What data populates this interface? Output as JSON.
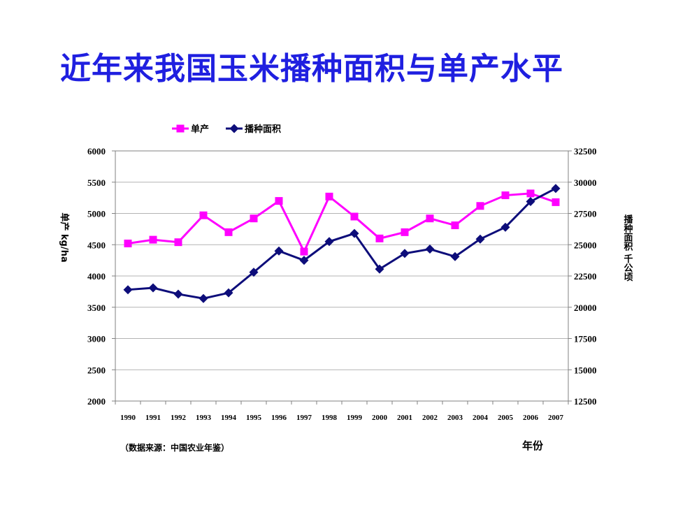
{
  "title": "近年来我国玉米播种面积与单产水平",
  "source_note": "（数据来源：中国农业年鉴）",
  "chart_data": {
    "type": "line",
    "xlabel": "年份",
    "ylabel_left": "单产 kg/ha",
    "ylabel_right": "播种面积  千公顷",
    "categories": [
      "1990",
      "1991",
      "1992",
      "1993",
      "1994",
      "1995",
      "1996",
      "1997",
      "1998",
      "1999",
      "2000",
      "2001",
      "2002",
      "2003",
      "2004",
      "2005",
      "2006",
      "2007"
    ],
    "ylim_left": [
      2000,
      6000
    ],
    "yticks_left": [
      2000,
      2500,
      3000,
      3500,
      4000,
      4500,
      5000,
      5500,
      6000
    ],
    "ylim_right": [
      12500,
      32500
    ],
    "yticks_right": [
      12500,
      15000,
      17500,
      20000,
      22500,
      25000,
      27500,
      30000,
      32500
    ],
    "grid": true,
    "legend_position": "top-center",
    "series": [
      {
        "name": "单产",
        "axis": "left",
        "color": "#ff00ff",
        "marker": "square",
        "values": [
          4520,
          4580,
          4540,
          4970,
          4700,
          4920,
          5200,
          4390,
          5270,
          4950,
          4600,
          4700,
          4920,
          4810,
          5120,
          5290,
          5320,
          5180
        ]
      },
      {
        "name": "播种面积",
        "axis": "right",
        "color": "#0d0d7a",
        "marker": "diamond",
        "values": [
          21400,
          21550,
          21050,
          20700,
          21150,
          22800,
          24500,
          23750,
          25250,
          25900,
          23050,
          24300,
          24650,
          24050,
          25450,
          26400,
          28450,
          29500
        ]
      }
    ]
  }
}
